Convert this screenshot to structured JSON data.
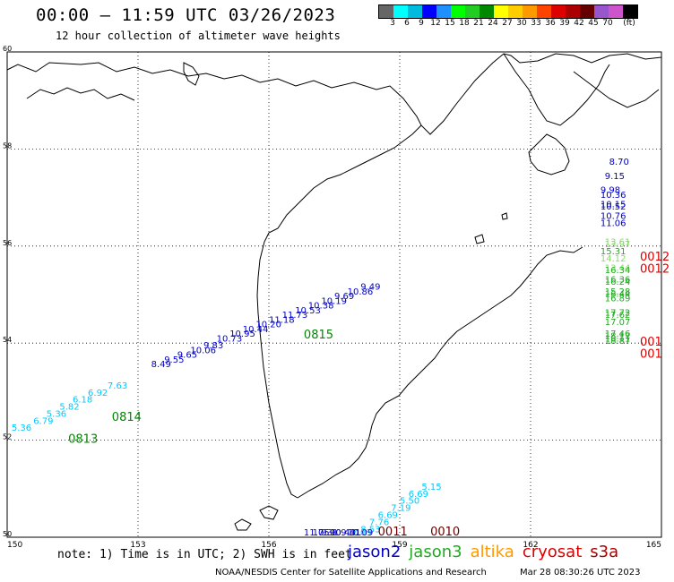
{
  "header": {
    "title": "00:00 – 11:59 UTC 03/26/2023",
    "subtitle": "12 hour collection of altimeter wave heights"
  },
  "colorbar": {
    "colors": [
      "#666666",
      "#00ffff",
      "#00bbdd",
      "#0000ff",
      "#1e90ff",
      "#00ff00",
      "#22cc22",
      "#008800",
      "#ffff00",
      "#ffcc00",
      "#ff9900",
      "#ff4400",
      "#dd0000",
      "#aa0000",
      "#660000",
      "#9955cc",
      "#cc55cc",
      "#000000"
    ],
    "labels": [
      "3",
      "6",
      "9",
      "12",
      "15",
      "18",
      "21",
      "24",
      "27",
      "30",
      "33",
      "36",
      "39",
      "42",
      "45",
      "70",
      "(ft)"
    ]
  },
  "axes": {
    "lon_ticks": [
      "150",
      "153",
      "156",
      "159",
      "162",
      "165"
    ],
    "lat_ticks": [
      "60",
      "58",
      "56",
      "54",
      "52",
      "50"
    ]
  },
  "tracks": [
    {
      "color": "#0000c8",
      "labels": [
        [
          "9.49",
          158.1,
          54.95
        ],
        [
          "10.86",
          157.8,
          54.85
        ],
        [
          "9.69",
          157.5,
          54.75
        ],
        [
          "10.19",
          157.2,
          54.65
        ],
        [
          "10.38",
          156.9,
          54.55
        ],
        [
          "10.53",
          156.6,
          54.45
        ],
        [
          "11.73",
          156.3,
          54.35
        ],
        [
          "11.18",
          156.0,
          54.25
        ],
        [
          "10.20",
          155.7,
          54.15
        ],
        [
          "10.44",
          155.4,
          54.05
        ],
        [
          "10.95",
          155.1,
          53.95
        ],
        [
          "10.73",
          154.8,
          53.85
        ],
        [
          "9.83",
          154.5,
          53.7
        ],
        [
          "10.06",
          154.2,
          53.6
        ],
        [
          "9.65",
          153.9,
          53.5
        ],
        [
          "9.55",
          153.6,
          53.4
        ],
        [
          "8.49",
          153.3,
          53.3
        ]
      ]
    },
    {
      "color": "#00c8ff",
      "labels": [
        [
          "7.63",
          152.3,
          52.85
        ],
        [
          "6.92",
          151.85,
          52.7
        ],
        [
          "6.18",
          151.5,
          52.55
        ],
        [
          "5.82",
          151.2,
          52.4
        ],
        [
          "5.36",
          150.9,
          52.25
        ],
        [
          "6.79",
          150.6,
          52.1
        ],
        [
          "5.36",
          150.1,
          51.95
        ]
      ]
    },
    {
      "color": "#00c8ff",
      "labels": [
        [
          "5.15",
          159.5,
          50.7
        ],
        [
          "6.69",
          159.2,
          50.55
        ],
        [
          "5.50",
          159.0,
          50.4
        ],
        [
          "7.19",
          158.8,
          50.25
        ],
        [
          "6.69",
          158.5,
          50.1
        ],
        [
          "7.76",
          158.3,
          49.95
        ],
        [
          "8.53",
          158.1,
          49.8
        ],
        [
          "7.03",
          157.9,
          49.65
        ]
      ]
    },
    {
      "color": "#0000c8",
      "labels": [
        [
          "10.09",
          157.8,
          49.5
        ],
        [
          "9.41",
          157.65,
          49.45
        ],
        [
          "10.43",
          157.4,
          49.3
        ],
        [
          "9.90",
          157.2,
          49.15
        ],
        [
          "10.31",
          157.0,
          49.0
        ],
        [
          "11.75",
          156.8,
          48.85
        ]
      ]
    },
    {
      "color": "#0000c8",
      "labels": [
        [
          "8.70",
          163.8,
          57.6
        ],
        [
          "9.15",
          163.7,
          57.3
        ],
        [
          "9.98",
          163.6,
          57.0
        ],
        [
          "10.36",
          163.6,
          56.9
        ],
        [
          "10.15",
          163.6,
          56.7
        ],
        [
          "10.52",
          163.6,
          56.65
        ],
        [
          "10.76",
          163.6,
          56.45
        ],
        [
          "11.06",
          163.6,
          56.3
        ]
      ]
    },
    {
      "color": "#88dd66",
      "labels": [
        [
          "13.61",
          163.7,
          55.9
        ],
        [
          "13.97",
          163.7,
          55.85
        ],
        [
          "14.12",
          163.6,
          55.55
        ],
        [
          "13.44",
          163.7,
          55.35
        ]
      ]
    },
    {
      "color": "#22aa22",
      "labels": [
        [
          "15.31",
          163.6,
          55.7
        ],
        [
          "16.34",
          163.7,
          55.3
        ],
        [
          "16.36",
          163.7,
          55.1
        ],
        [
          "16.24",
          163.7,
          55.05
        ],
        [
          "15.28",
          163.7,
          54.85
        ],
        [
          "16.44",
          163.7,
          54.8
        ],
        [
          "16.89",
          163.7,
          54.7
        ],
        [
          "17.72",
          163.7,
          54.4
        ],
        [
          "17.62",
          163.7,
          54.35
        ],
        [
          "17.07",
          163.7,
          54.2
        ],
        [
          "17.46",
          163.7,
          53.95
        ],
        [
          "18.17",
          163.7,
          53.9
        ],
        [
          "18.11",
          163.7,
          53.85
        ],
        [
          "18.87",
          163.7,
          53.8
        ]
      ]
    }
  ],
  "time_labels": [
    {
      "text": "0815",
      "color": "#008800",
      "lon": 156.8,
      "lat": 54.1
    },
    {
      "text": "0814",
      "color": "#008800",
      "lon": 152.4,
      "lat": 52.4
    },
    {
      "text": "0813",
      "color": "#008800",
      "lon": 151.4,
      "lat": 51.95
    },
    {
      "text": "0010",
      "color": "#660000",
      "lon": 159.7,
      "lat": 49.45
    },
    {
      "text": "0011",
      "color": "#660000",
      "lon": 158.5,
      "lat": 48.8
    },
    {
      "text": "0012",
      "color": "#dd0000",
      "lon": 165.3,
      "lat": 55.7
    },
    {
      "text": "0012",
      "color": "#dd0000",
      "lon": 165.4,
      "lat": 55.45
    },
    {
      "text": "001",
      "color": "#dd0000",
      "lon": 165.7,
      "lat": 53.95
    },
    {
      "text": "001",
      "color": "#dd0000",
      "lon": 165.7,
      "lat": 53.7
    }
  ],
  "note": "note: 1) Time is in UTC; 2) SWH is in feet",
  "legend": [
    {
      "label": "jason2",
      "color": "#0000c8"
    },
    {
      "label": "jason3",
      "color": "#22aa22"
    },
    {
      "label": "altika",
      "color": "#ff9900"
    },
    {
      "label": "cryosat",
      "color": "#dd0000"
    },
    {
      "label": "s3a",
      "color": "#aa0000"
    }
  ],
  "footer": {
    "left": "NOAA/NESDIS Center for Satellite Applications and Research",
    "right": "Mar 28 08:30:26 UTC 2023"
  }
}
